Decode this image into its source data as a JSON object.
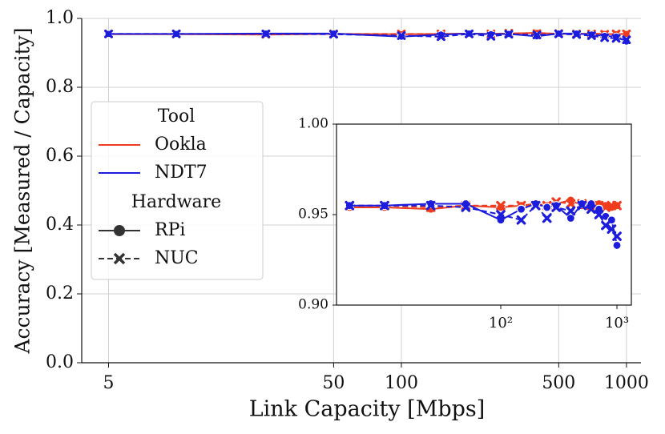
{
  "chart_data": {
    "type": "line",
    "x_label": "Link Capacity [Mbps]",
    "y_label": "Accuracy [Measured / Capacity]",
    "xscale": "log",
    "grid": true,
    "xlim": [
      3.8,
      1160
    ],
    "xticks": [
      5,
      50,
      100,
      500,
      1000
    ],
    "ylim": [
      0,
      1
    ],
    "yticks": [
      {
        "value": 0,
        "label": "0.0"
      },
      0.2,
      0.4,
      0.6,
      0.8,
      {
        "value": 1,
        "label": "1.0"
      }
    ],
    "x": [
      5,
      10,
      25,
      50,
      100,
      150,
      200,
      250,
      300,
      400,
      500,
      600,
      700,
      800,
      900,
      1000
    ],
    "legend": {
      "tool_title": "Tool",
      "hardware_title": "Hardware",
      "corner": "center left"
    },
    "hardware": [
      {
        "name": "RPi",
        "marker": "circle",
        "dash": "solid"
      },
      {
        "name": "NUC",
        "marker": "x",
        "dash": "dashed"
      }
    ],
    "tools": [
      {
        "name": "Ookla",
        "color": "#f03c1e",
        "by_hardware": [
          {
            "values": [
              0.954,
              0.954,
              0.953,
              0.955,
              0.954,
              0.955,
              0.956,
              0.955,
              0.956,
              0.958,
              0.955,
              0.955,
              0.956,
              0.955,
              0.954,
              0.955
            ]
          },
          {
            "values": [
              0.955,
              0.955,
              0.954,
              0.955,
              0.955,
              0.955,
              0.955,
              0.955,
              0.957,
              0.956,
              0.956,
              0.955,
              0.955,
              0.954,
              0.955,
              0.955
            ]
          }
        ]
      },
      {
        "name": "NDT7",
        "color": "#1c1cdc",
        "by_hardware": [
          {
            "values": [
              0.955,
              0.955,
              0.956,
              0.956,
              0.947,
              0.953,
              0.956,
              0.954,
              0.955,
              0.948,
              0.956,
              0.956,
              0.953,
              0.949,
              0.947,
              0.933
            ]
          },
          {
            "values": [
              0.955,
              0.955,
              0.955,
              0.954,
              0.95,
              0.947,
              0.955,
              0.948,
              0.954,
              0.952,
              0.955,
              0.953,
              0.95,
              0.944,
              0.942,
              0.938
            ]
          }
        ]
      }
    ],
    "inset": {
      "xscale": "log",
      "xlim": [
        3.86,
        1330
      ],
      "xticks": [
        {
          "value": 100,
          "label": "10²"
        },
        {
          "value": 1000,
          "label": "10³"
        }
      ],
      "ylim": [
        0.9,
        1.0
      ],
      "yticks": [
        {
          "value": 0.9,
          "label": "0.90"
        },
        {
          "value": 0.95,
          "label": "0.95"
        },
        {
          "value": 1.0,
          "label": "1.00"
        }
      ]
    }
  }
}
